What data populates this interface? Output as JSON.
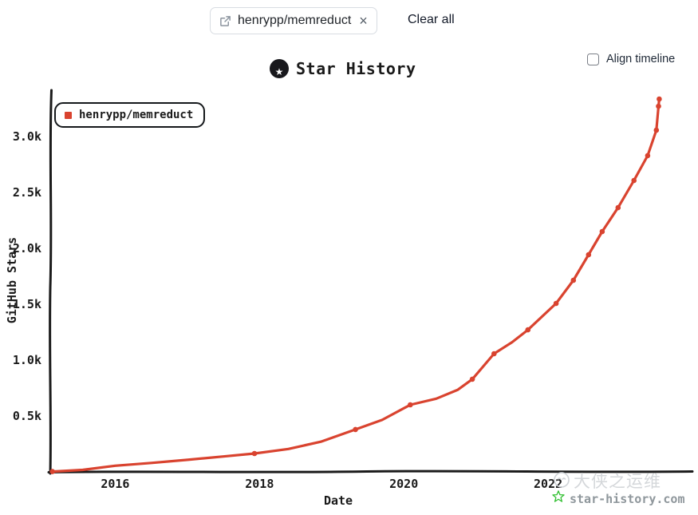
{
  "toolbar": {
    "repo_tag": {
      "label": "henrypp/memreduct",
      "close_glyph": "×"
    },
    "clear_all_label": "Clear all"
  },
  "header": {
    "title": "Star History",
    "logo_star_glyph": "★",
    "align_timeline_label": "Align timeline",
    "align_timeline_checked": false
  },
  "watermark": {
    "line1": "大侠之运维",
    "line2": "star-history.com",
    "star_color": "#2fbf2f",
    "line1_color": "#d4d7da",
    "line2_color": "#8f979c"
  },
  "chart_data": {
    "type": "line",
    "title": "Star History",
    "xlabel": "Date",
    "ylabel": "GitHub Stars",
    "x_tick_labels": [
      "2016",
      "2018",
      "2020",
      "2022"
    ],
    "x_tick_years": [
      2016,
      2018,
      2020,
      2022
    ],
    "y_tick_labels": [
      "0.5k",
      "1.0k",
      "1.5k",
      "2.0k",
      "2.5k",
      "3.0k"
    ],
    "y_tick_values": [
      500,
      1000,
      1500,
      2000,
      2500,
      3000
    ],
    "xlim": [
      2015.1,
      2024.0
    ],
    "ylim": [
      0,
      3400
    ],
    "grid": false,
    "legend_position": "top-left",
    "axis_color": "#1b1b1b",
    "series": [
      {
        "name": "henrypp/memreduct",
        "color": "#d9432f",
        "points": [
          [
            2015.13,
            3,
            1
          ],
          [
            2015.55,
            18,
            0
          ],
          [
            2016.0,
            55,
            0
          ],
          [
            2016.5,
            80,
            0
          ],
          [
            2017.0,
            108,
            0
          ],
          [
            2017.5,
            138,
            0
          ],
          [
            2017.93,
            164,
            1
          ],
          [
            2018.4,
            205,
            0
          ],
          [
            2018.85,
            270,
            0
          ],
          [
            2019.33,
            379,
            1
          ],
          [
            2019.7,
            465,
            0
          ],
          [
            2020.09,
            600,
            1
          ],
          [
            2020.45,
            655,
            0
          ],
          [
            2020.75,
            735,
            0
          ],
          [
            2020.95,
            829,
            1
          ],
          [
            2021.25,
            1057,
            1
          ],
          [
            2021.5,
            1160,
            0
          ],
          [
            2021.72,
            1271,
            1
          ],
          [
            2022.11,
            1507,
            1
          ],
          [
            2022.35,
            1714,
            1
          ],
          [
            2022.56,
            1943,
            1
          ],
          [
            2022.75,
            2150,
            1
          ],
          [
            2022.97,
            2364,
            1
          ],
          [
            2023.19,
            2607,
            1
          ],
          [
            2023.38,
            2829,
            1
          ],
          [
            2023.5,
            3057,
            1
          ],
          [
            2023.53,
            3271,
            1
          ],
          [
            2023.54,
            3336,
            1
          ]
        ]
      }
    ]
  }
}
